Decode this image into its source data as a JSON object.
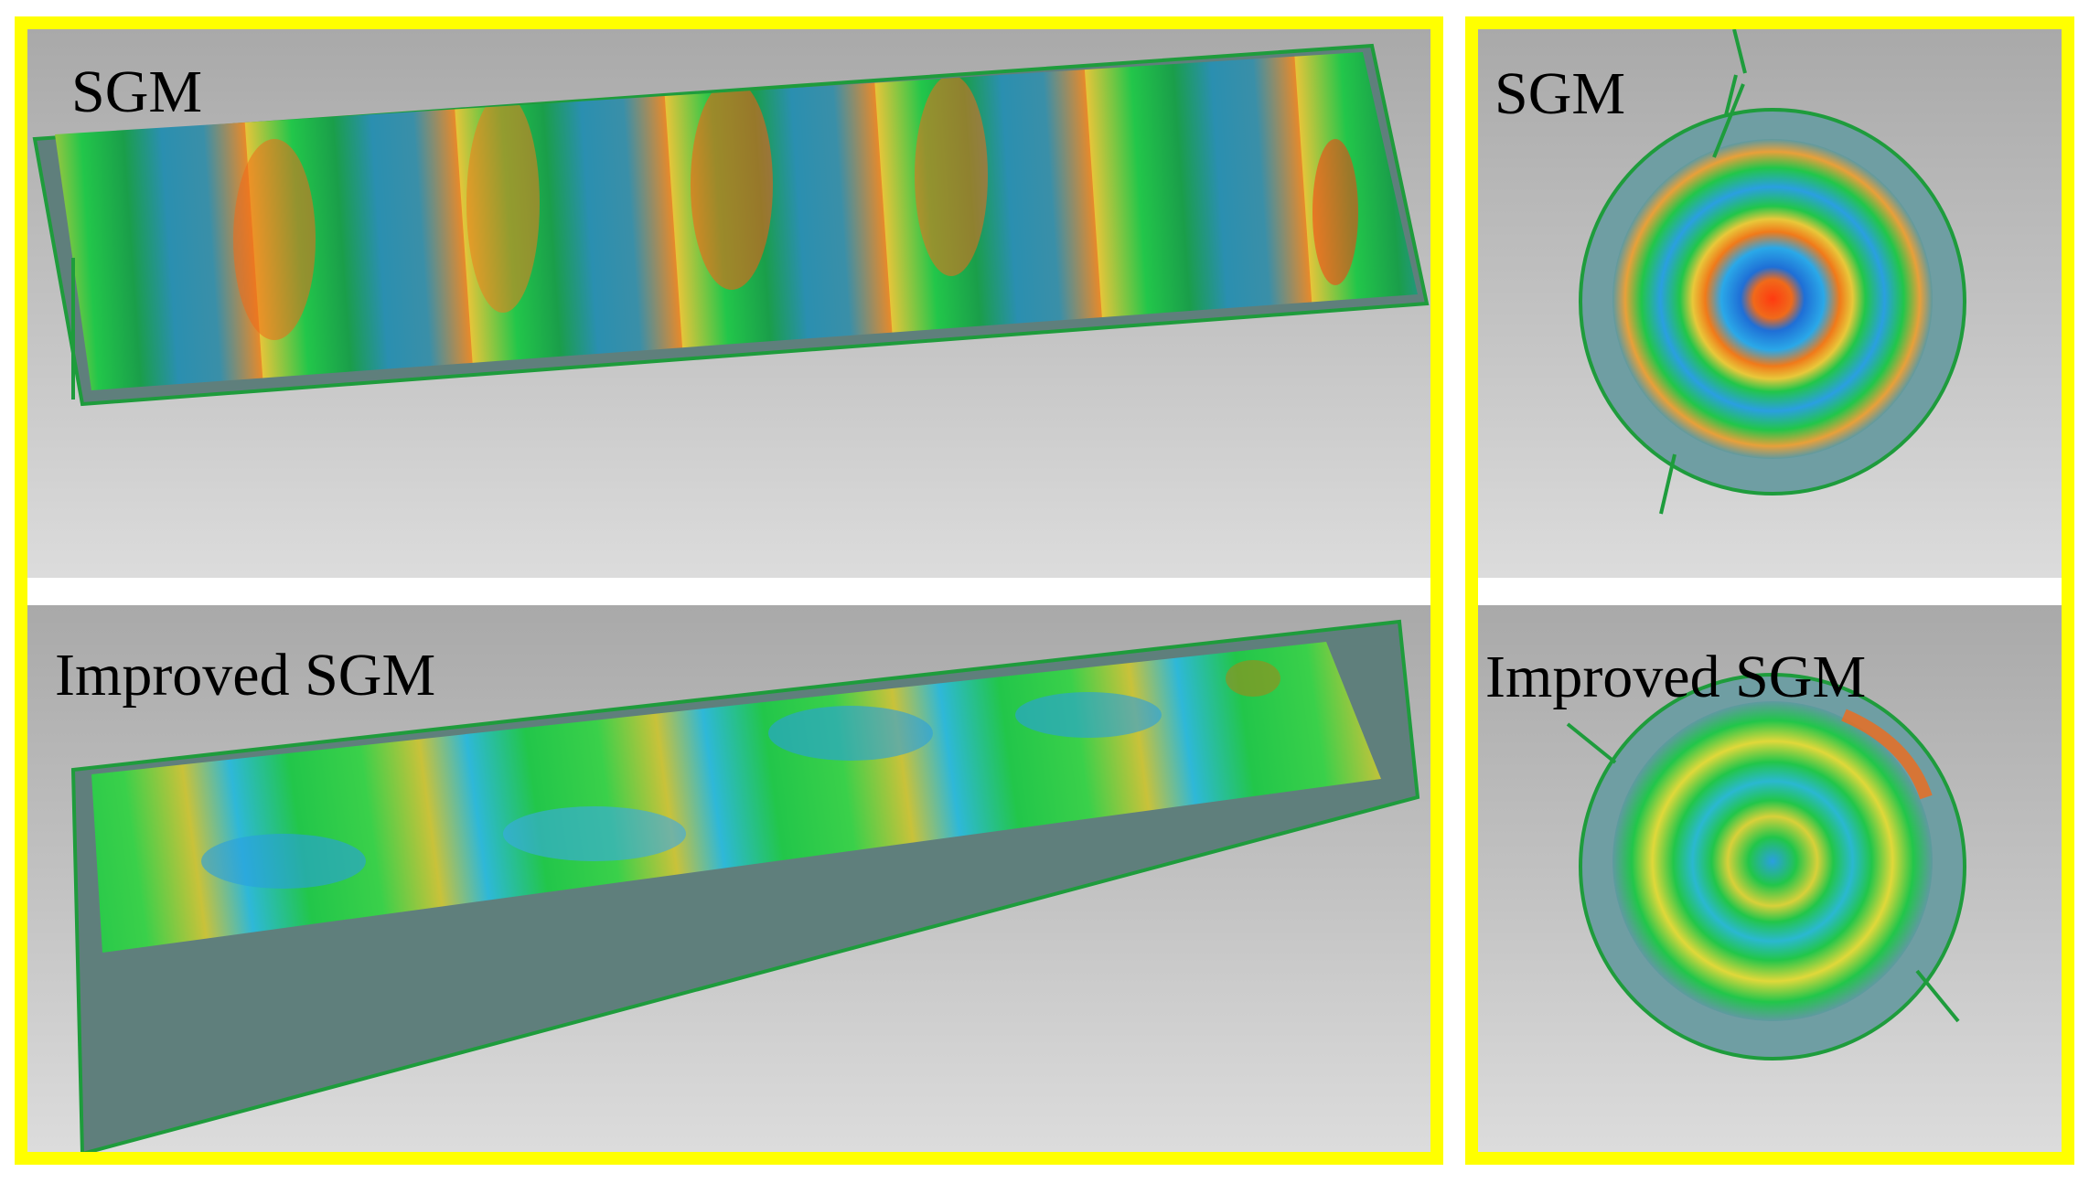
{
  "figure": {
    "panels": [
      {
        "label": "SGM"
      },
      {
        "label": "Improved SGM"
      },
      {
        "label": "SGM"
      },
      {
        "label": "Improved SGM"
      }
    ]
  },
  "colors": {
    "frame": "#ffff00",
    "background_gray": "#bdbdbd",
    "mesh_border": "#1e9c3c",
    "low": "#1f8fd6",
    "mid": "#22c64a",
    "high": "#f07a1a",
    "peak": "#ff3a10"
  }
}
